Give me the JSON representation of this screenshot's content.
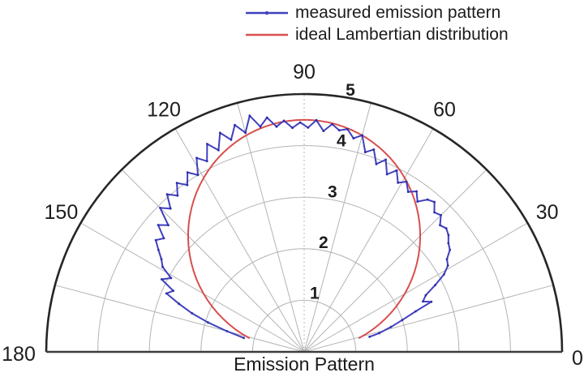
{
  "chart_data": {
    "type": "line",
    "subtype": "half-polar-plot",
    "title": "Emission Pattern",
    "r_max": 5,
    "r_ticks": [
      1,
      2,
      3,
      4,
      5
    ],
    "r_tick_label_angle_deg": 80,
    "angle_ticks_deg": [
      0,
      30,
      60,
      90,
      120,
      150,
      180
    ],
    "angle_grid_step_deg": 15,
    "grid": true,
    "legend": {
      "position": "top",
      "entries": [
        {
          "label": "measured emission pattern",
          "color": "#4040bf",
          "marker": "dot"
        },
        {
          "label": "ideal Lambertian distribution",
          "color": "#d84f4f",
          "marker": "none"
        }
      ]
    },
    "series": [
      {
        "name": "measured emission pattern",
        "color": "#4040bf",
        "marker_color": "#2e2ea8",
        "points_theta_r": [
          [
            167,
            1.2
          ],
          [
            165,
            1.55
          ],
          [
            163,
            1.95
          ],
          [
            161,
            2.3
          ],
          [
            159,
            2.6
          ],
          [
            157,
            2.9
          ],
          [
            155,
            2.8
          ],
          [
            153,
            3.1
          ],
          [
            151,
            2.95
          ],
          [
            149,
            3.2
          ],
          [
            147,
            3.3
          ],
          [
            145,
            3.45
          ],
          [
            143,
            3.6
          ],
          [
            141,
            3.5
          ],
          [
            139,
            3.75
          ],
          [
            137,
            3.6
          ],
          [
            135,
            3.95
          ],
          [
            133,
            3.8
          ],
          [
            131,
            4.05
          ],
          [
            129,
            3.9
          ],
          [
            127,
            4.1
          ],
          [
            125,
            3.95
          ],
          [
            123,
            4.15
          ],
          [
            121,
            4.0
          ],
          [
            119,
            4.3
          ],
          [
            117,
            4.15
          ],
          [
            115,
            4.45
          ],
          [
            113,
            4.25
          ],
          [
            111,
            4.55
          ],
          [
            109,
            4.35
          ],
          [
            107,
            4.6
          ],
          [
            105,
            4.4
          ],
          [
            103,
            4.7
          ],
          [
            101,
            4.45
          ],
          [
            99,
            4.6
          ],
          [
            97,
            4.4
          ],
          [
            95,
            4.5
          ],
          [
            93,
            4.35
          ],
          [
            91,
            4.45
          ],
          [
            89,
            4.35
          ],
          [
            87,
            4.5
          ],
          [
            85,
            4.3
          ],
          [
            83,
            4.45
          ],
          [
            81,
            4.35
          ],
          [
            79,
            4.4
          ],
          [
            77,
            4.25
          ],
          [
            75,
            4.35
          ],
          [
            73,
            4.05
          ],
          [
            71,
            4.15
          ],
          [
            69,
            3.9
          ],
          [
            67,
            4.05
          ],
          [
            65,
            3.8
          ],
          [
            63,
            3.95
          ],
          [
            61,
            3.75
          ],
          [
            59,
            3.85
          ],
          [
            57,
            3.7
          ],
          [
            55,
            3.8
          ],
          [
            53,
            3.65
          ],
          [
            51,
            3.8
          ],
          [
            49,
            3.85
          ],
          [
            47,
            3.7
          ],
          [
            45,
            3.75
          ],
          [
            43,
            3.6
          ],
          [
            41,
            3.65
          ],
          [
            39,
            3.6
          ],
          [
            37,
            3.5
          ],
          [
            35,
            3.45
          ],
          [
            33,
            3.3
          ],
          [
            31,
            3.25
          ],
          [
            29,
            3.1
          ],
          [
            27,
            2.85
          ],
          [
            25,
            2.6
          ],
          [
            23,
            2.5
          ],
          [
            21.5,
            2.65
          ],
          [
            20,
            2.3
          ],
          [
            18,
            2.0
          ],
          [
            16,
            1.75
          ],
          [
            14,
            1.5
          ],
          [
            13,
            1.3
          ]
        ]
      },
      {
        "name": "ideal Lambertian distribution",
        "color": "#d84f4f",
        "model": "r = A * sin(theta)",
        "amplitude": 4.5,
        "theta_range_deg": [
          14,
          166
        ]
      }
    ],
    "colors": {
      "axis": "#262626",
      "grid": "#b4b4b4",
      "text": "#1d1d1d"
    }
  }
}
